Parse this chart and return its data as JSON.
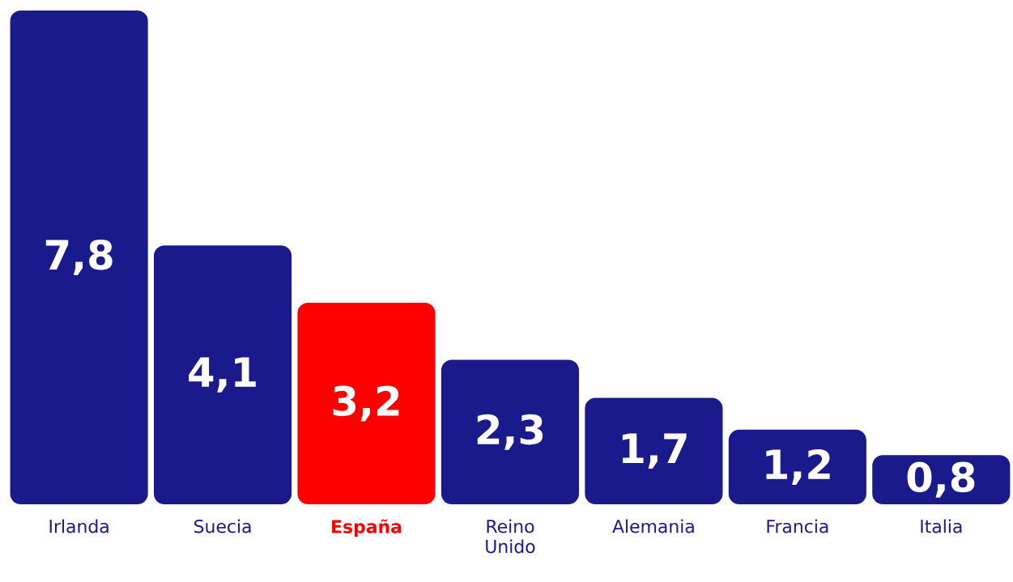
{
  "chart_data": {
    "type": "bar",
    "categories": [
      "Irlanda",
      "Suecia",
      "España",
      "Reino Unido",
      "Alemania",
      "Francia",
      "Italia"
    ],
    "values": [
      7.8,
      4.1,
      3.2,
      2.3,
      1.7,
      1.2,
      0.8
    ],
    "value_labels": [
      "7,8",
      "4,1",
      "3,2",
      "2,3",
      "1,7",
      "1,2",
      "0,8"
    ],
    "colors": [
      "#1a1a8c",
      "#1a1a8c",
      "#ff0000",
      "#1a1a8c",
      "#1a1a8c",
      "#1a1a8c",
      "#1a1a8c"
    ]
  }
}
